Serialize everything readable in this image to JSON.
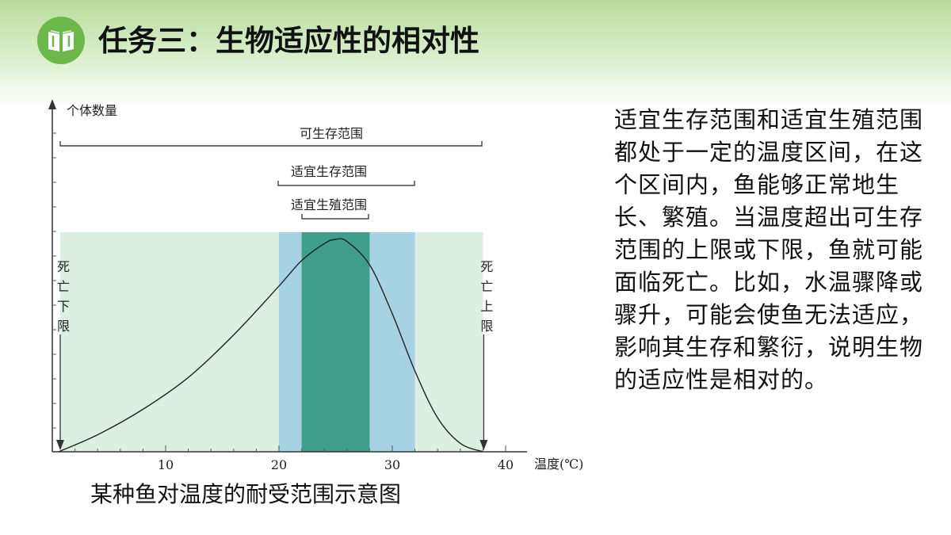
{
  "header": {
    "title": "任务三：生物适应性的相对性",
    "logo_icon": "open-book-icon",
    "band_color": "#b9dc9c",
    "logo_color": "#6cb84a"
  },
  "chart_data": {
    "type": "area",
    "ylabel": "个体数量",
    "xlabel": "温度(℃)",
    "x_ticks": [
      10,
      20,
      30,
      40
    ],
    "xlim": [
      0,
      40
    ],
    "grid": false,
    "ranges": [
      {
        "name": "可生存范围",
        "x": [
          0,
          38
        ],
        "color": "#ddefe2"
      },
      {
        "name": "适宜生存范围",
        "x": [
          20,
          32
        ],
        "color": "#a6d2e4"
      },
      {
        "name": "适宜生殖范围",
        "x": [
          22,
          28
        ],
        "color": "#3f9f8a"
      }
    ],
    "limits": [
      {
        "name": "死亡下限",
        "x": 0
      },
      {
        "name": "死亡上限",
        "x": 38
      }
    ],
    "curve": {
      "x": [
        0,
        4,
        8,
        12,
        16,
        20,
        22,
        24,
        25,
        26,
        28,
        30,
        32,
        34,
        36,
        38
      ],
      "y": [
        0,
        8,
        20,
        35,
        55,
        78,
        90,
        98,
        100,
        99,
        88,
        65,
        38,
        16,
        4,
        0
      ]
    }
  },
  "caption": "某种鱼对温度的耐受范围示意图",
  "explanation": "适宜生存范围和适宜生殖范围都处于一定的温度区间，在这个区间内，鱼能够正常地生长、繁殖。当温度超出可生存范围的上限或下限，鱼就可能面临死亡。比如，水温骤降或骤升，可能会使鱼无法适应，影响其生存和繁衍，说明生物的适应性是相对的。"
}
